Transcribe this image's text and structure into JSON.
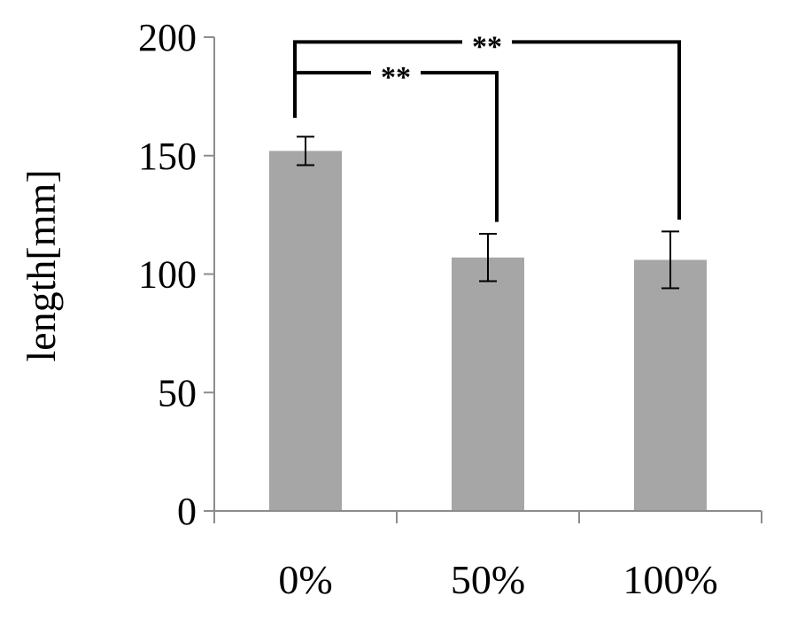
{
  "chart_data": {
    "type": "bar",
    "title": "",
    "xlabel": "",
    "ylabel": "length[mm]",
    "ylim": [
      0,
      200
    ],
    "yticks": [
      0,
      50,
      100,
      150,
      200
    ],
    "yticklabels": [
      "0",
      "50",
      "100",
      "150",
      "200"
    ],
    "categories": [
      "0%",
      "50%",
      "100%"
    ],
    "values": [
      152,
      107,
      106
    ],
    "errors": [
      6,
      10,
      12
    ],
    "grid": false,
    "legend": "none",
    "significance": [
      {
        "from": 0,
        "to": 1,
        "label": "**",
        "level": 185
      },
      {
        "from": 0,
        "to": 2,
        "label": "**",
        "level": 198
      }
    ],
    "colors": {
      "bar": "#a6a6a6",
      "axis": "#8c8c8c"
    }
  }
}
